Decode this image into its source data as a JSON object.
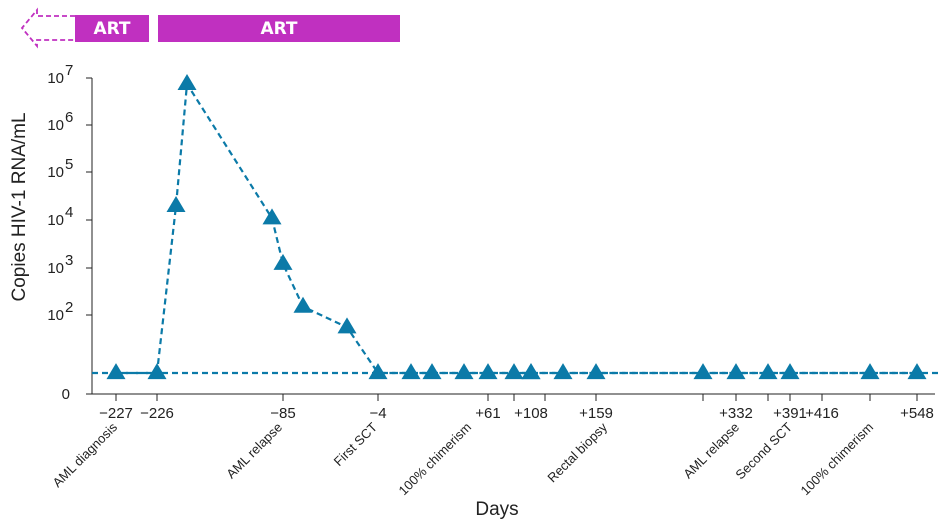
{
  "chart_data": {
    "type": "scatter",
    "xlabel": "Days",
    "ylabel": "Copies HIV-1 RNA/mL",
    "yscale": "log",
    "art_bars": [
      {
        "label": "ART",
        "arrow_left": true,
        "color": "#c030c0"
      },
      {
        "label": "ART",
        "arrow_left": false,
        "color": "#c030c0"
      }
    ],
    "y_ticks": [
      {
        "base": "0",
        "exp": ""
      },
      {
        "base": "10",
        "exp": "2"
      },
      {
        "base": "10",
        "exp": "3"
      },
      {
        "base": "10",
        "exp": "4"
      },
      {
        "base": "10",
        "exp": "5"
      },
      {
        "base": "10",
        "exp": "6"
      },
      {
        "base": "10",
        "exp": "7"
      }
    ],
    "x_tick_labels": [
      "−227",
      "−226",
      "−85",
      "−4",
      "+61",
      "+108",
      "+159",
      "+332",
      "+391",
      "+416",
      "+548"
    ],
    "annotations": [
      "AML diagnosis",
      "AML relapse",
      "First SCT",
      "100% chimerism",
      "Rectal biopsy",
      "AML relapse",
      "Second SCT",
      "100% chimerism"
    ],
    "detection_limit_line": true,
    "series": [
      {
        "color": "#0b7aa8",
        "marker": "triangle",
        "line": "dashed",
        "points": [
          {
            "day": -227,
            "value": 0
          },
          {
            "day": -200,
            "value": 0
          },
          {
            "day": -190,
            "value": 20000
          },
          {
            "day": -180,
            "value": 7500000
          },
          {
            "day": -95,
            "value": 11000
          },
          {
            "day": -85,
            "value": 1200
          },
          {
            "day": -72,
            "value": 150
          },
          {
            "day": -40,
            "value": 55
          },
          {
            "day": -4,
            "value": 0
          },
          {
            "day": 15,
            "value": 0
          },
          {
            "day": 30,
            "value": 0
          },
          {
            "day": 45,
            "value": 0
          },
          {
            "day": 61,
            "value": 0
          },
          {
            "day": 85,
            "value": 0
          },
          {
            "day": 98,
            "value": 0
          },
          {
            "day": 108,
            "value": 0
          },
          {
            "day": 135,
            "value": 0
          },
          {
            "day": 159,
            "value": 0
          },
          {
            "day": 300,
            "value": 0
          },
          {
            "day": 332,
            "value": 0
          },
          {
            "day": 360,
            "value": 0
          },
          {
            "day": 391,
            "value": 0
          },
          {
            "day": 480,
            "value": 0
          },
          {
            "day": 548,
            "value": 0
          }
        ]
      }
    ]
  }
}
